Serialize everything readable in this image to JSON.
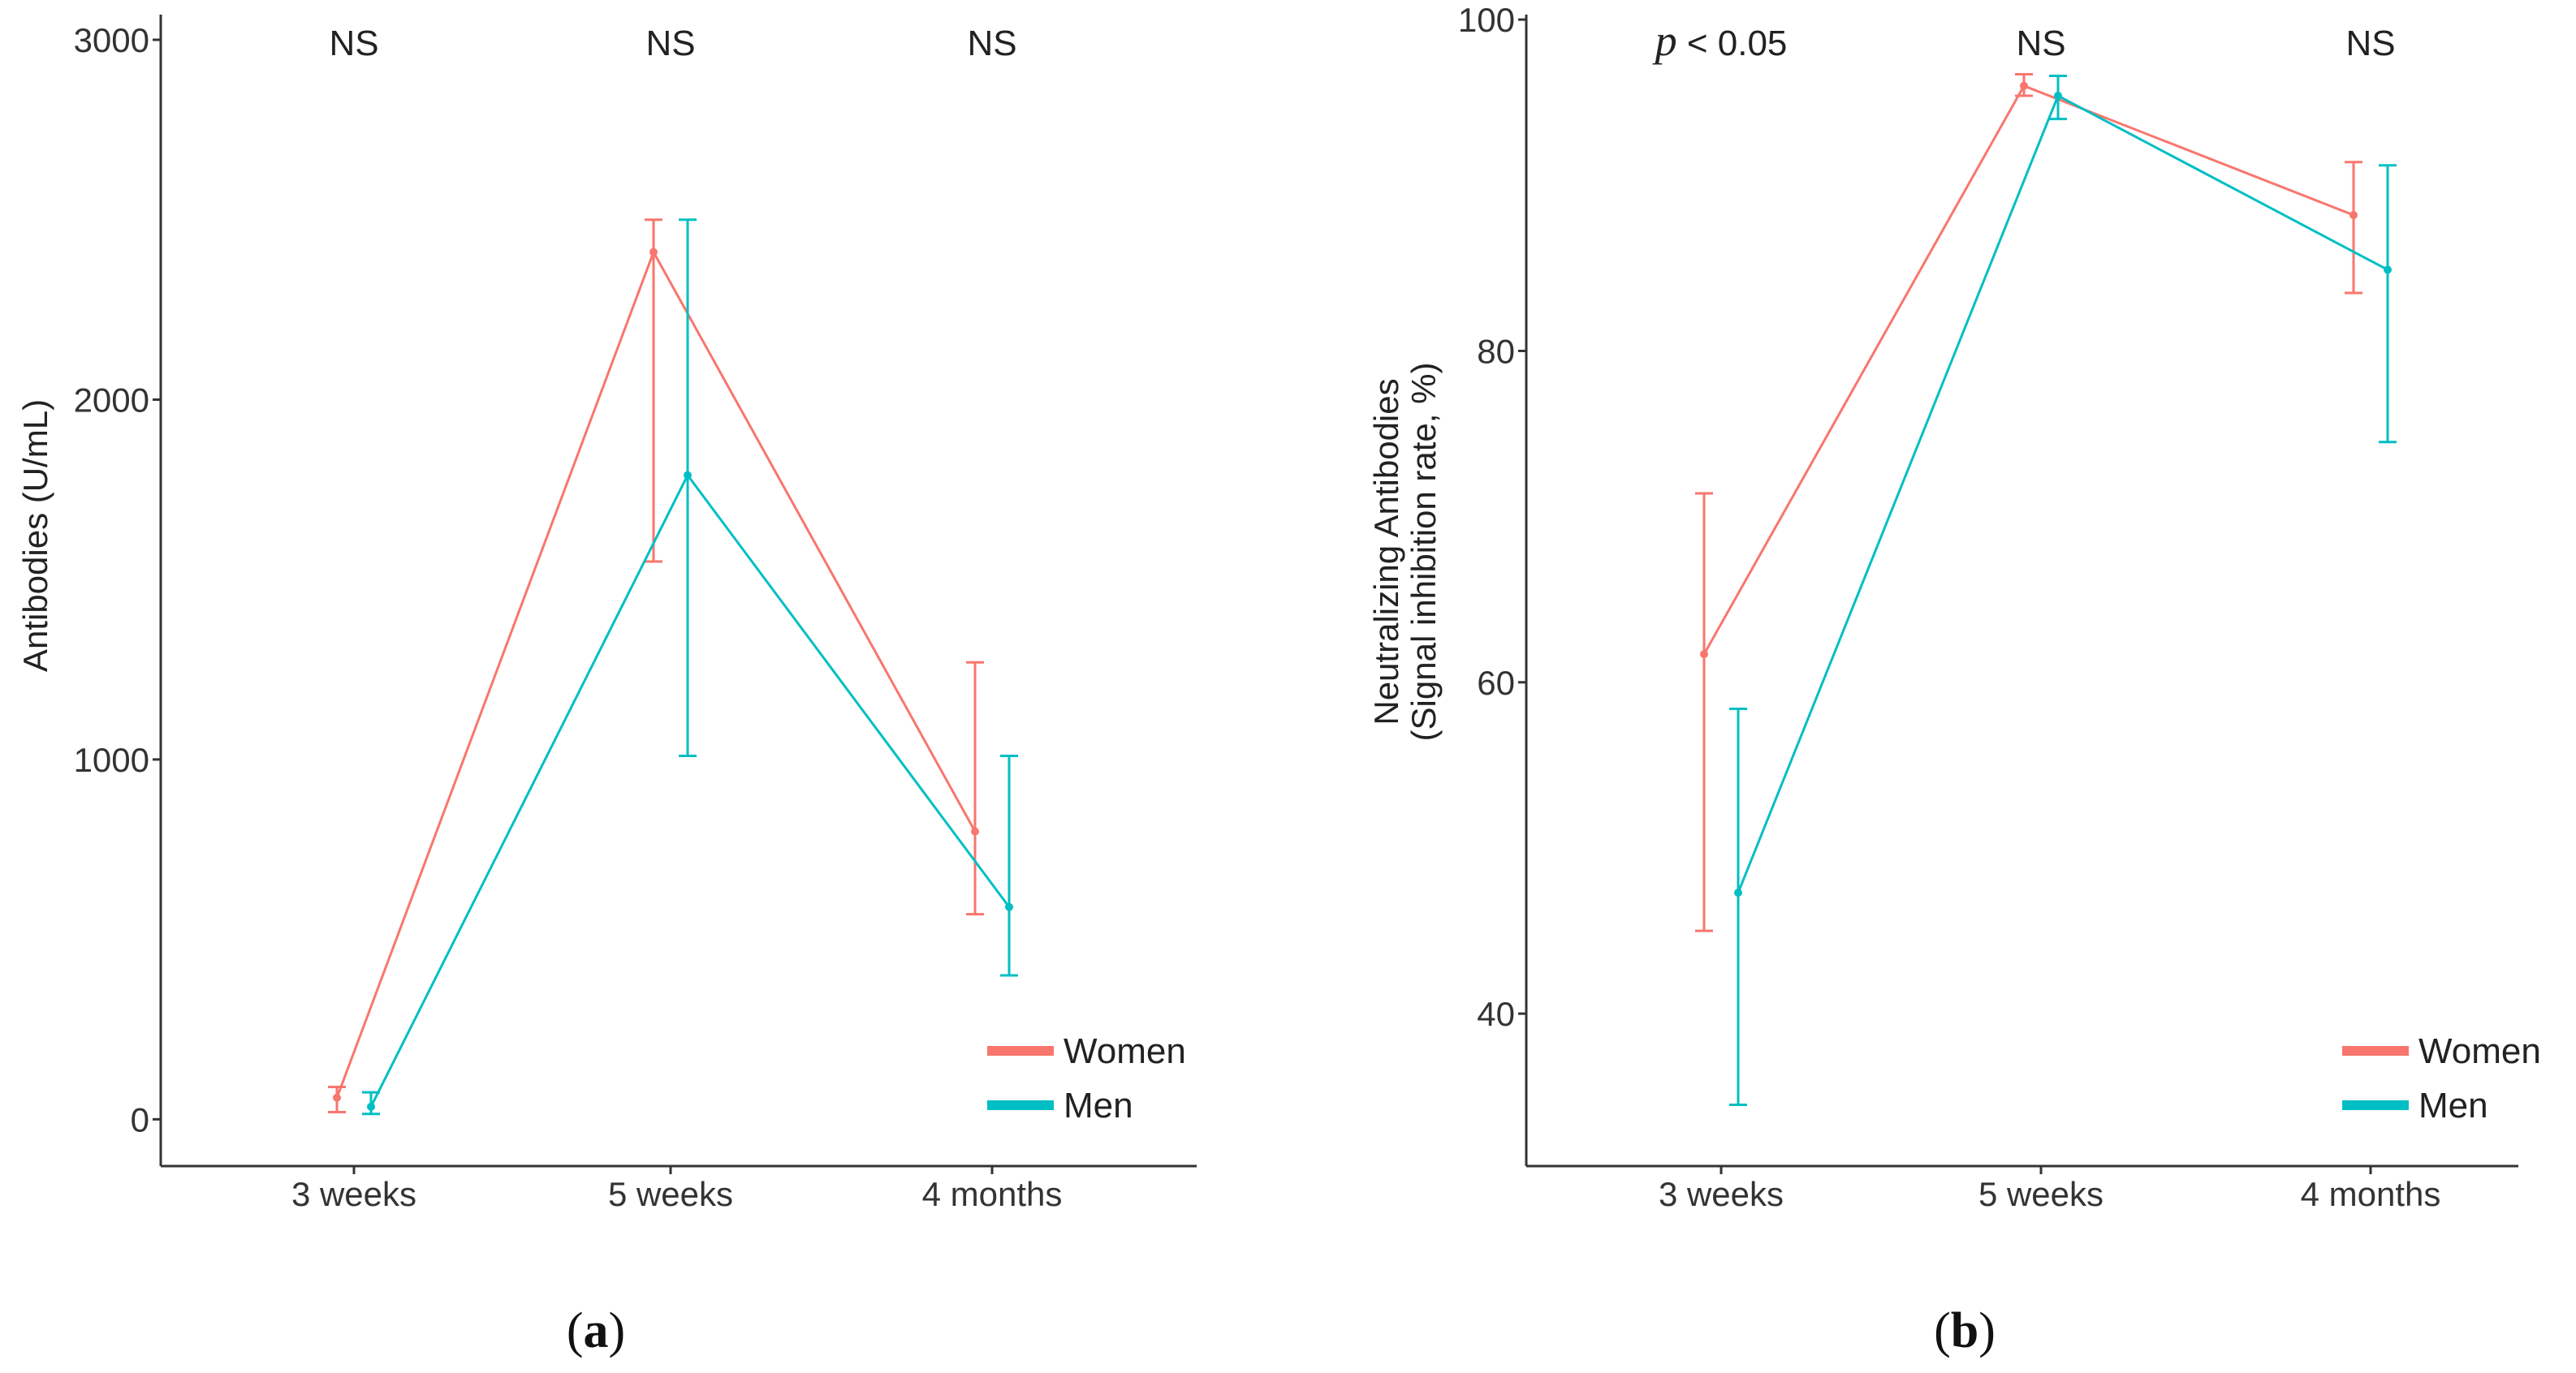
{
  "colors": {
    "women": "#F8766D",
    "men": "#00BFC4",
    "axis": "#333333"
  },
  "chart_data": [
    {
      "type": "line",
      "panel_label_open": "(",
      "panel_label": "a",
      "panel_label_close": ")",
      "xlabel": "",
      "ylabel": "Antibodies (U/mL)",
      "categories": [
        "3 weeks",
        "5 weeks",
        "4 months"
      ],
      "ylim": [
        -130,
        3070
      ],
      "yticks": [
        0,
        1000,
        2000,
        3000
      ],
      "significance": [
        {
          "text": "NS"
        },
        {
          "text": "NS"
        },
        {
          "text": "NS"
        }
      ],
      "series": [
        {
          "name": "Women",
          "color_key": "women",
          "values": [
            60,
            2410,
            800
          ],
          "err_low": [
            20,
            1550,
            570
          ],
          "err_high": [
            90,
            2500,
            1270
          ]
        },
        {
          "name": "Men",
          "color_key": "men",
          "values": [
            35,
            1790,
            590
          ],
          "err_low": [
            15,
            1010,
            400
          ],
          "err_high": [
            75,
            2500,
            1010
          ]
        }
      ],
      "legend": {
        "placement": "bottom-right",
        "entries": [
          "Women",
          "Men"
        ]
      },
      "grid": false
    },
    {
      "type": "line",
      "panel_label_open": "(",
      "panel_label": "b",
      "panel_label_close": ")",
      "xlabel": "",
      "ylabel_line1": "Neutralizing Antibodies",
      "ylabel_line2": "(Signal inhibition rate, %)",
      "categories": [
        "3 weeks",
        "5 weeks",
        "4 months"
      ],
      "ylim": [
        30.8,
        100.3
      ],
      "yticks": [
        40,
        60,
        80,
        100
      ],
      "significance": [
        {
          "p_symbol": "p",
          "text": " < 0.05"
        },
        {
          "text": "NS"
        },
        {
          "text": "NS"
        }
      ],
      "series": [
        {
          "name": "Women",
          "color_key": "women",
          "values": [
            61.7,
            96.0,
            88.2
          ],
          "err_low": [
            45.0,
            95.4,
            83.5
          ],
          "err_high": [
            71.4,
            96.7,
            91.4
          ]
        },
        {
          "name": "Men",
          "color_key": "men",
          "values": [
            47.3,
            95.4,
            84.9
          ],
          "err_low": [
            34.5,
            94.0,
            74.5
          ],
          "err_high": [
            58.4,
            96.6,
            91.2
          ]
        }
      ],
      "legend": {
        "placement": "bottom-right",
        "entries": [
          "Women",
          "Men"
        ]
      },
      "grid": false
    }
  ]
}
